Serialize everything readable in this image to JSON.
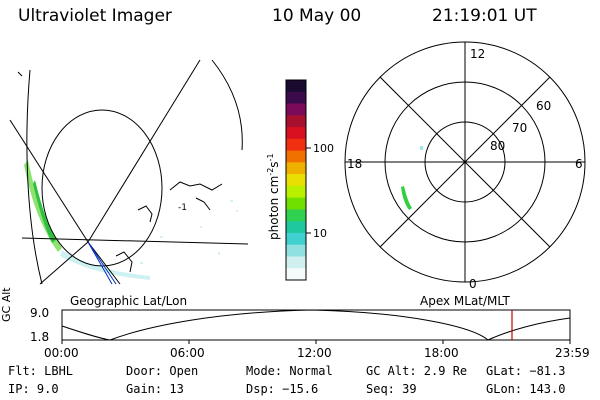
{
  "header": {
    "instrument": "Ultraviolet Imager",
    "date": "10 May 00",
    "time": "21:19:01 UT"
  },
  "left_panel": {
    "caption": "Geographic Lat/Lon",
    "small_label": "-1"
  },
  "colorbar": {
    "label_base": "photon cm",
    "label_exp1": "-2",
    "label_s": "s",
    "label_exp2": "-1",
    "tick_100": "100",
    "tick_10": "10",
    "colors": [
      "#1a0a30",
      "#3a0a4a",
      "#7a0a5a",
      "#a81030",
      "#d81020",
      "#f03010",
      "#f07000",
      "#f0b000",
      "#e8e000",
      "#b8f000",
      "#70e000",
      "#30d050",
      "#20c8a0",
      "#40d0d0",
      "#90e0e0",
      "#d0f0f0",
      "#f4fafa"
    ]
  },
  "polar": {
    "caption": "Apex MLat/MLT",
    "mlt_top": "12",
    "mlt_left": "18",
    "mlt_right": "6",
    "mlt_bottom": "0",
    "lat_60": "60",
    "lat_70": "70",
    "lat_80": "80"
  },
  "timeline": {
    "axis_label": "GC Alt",
    "y_top": "9.0",
    "y_bottom": "1.8",
    "ticks": [
      "00:00",
      "06:00",
      "12:00",
      "18:00",
      "23:59"
    ],
    "marker_color": "#cc0000"
  },
  "info": {
    "flt": "Flt: LBHL",
    "ip": "IP: 9.0",
    "door": "Door: Open",
    "gain": "Gain: 13",
    "mode": "Mode: Normal",
    "dsp": "Dsp: −15.6",
    "gc_alt": "GC Alt: 2.9 Re",
    "seq": "Seq: 39",
    "glat": "GLat: −81.3",
    "glon": "GLon: 143.0"
  }
}
